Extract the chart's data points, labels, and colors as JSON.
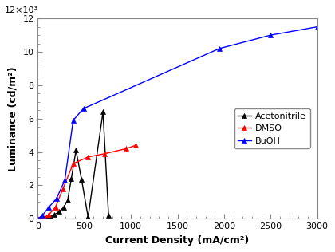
{
  "title": "",
  "xlabel": "Current Density (mA/cm²)",
  "ylabel": "Luminance (cd/m²)",
  "xlim": [
    0,
    3000
  ],
  "ylim": [
    0,
    12000
  ],
  "ytick_values": [
    0,
    2000,
    4000,
    6000,
    8000,
    10000,
    12000
  ],
  "ytick_labels": [
    "0",
    "2",
    "4",
    "6",
    "8",
    "10",
    "12"
  ],
  "xtick_values": [
    0,
    500,
    1000,
    1500,
    2000,
    2500,
    3000
  ],
  "series": [
    {
      "label": "Acetonitrile",
      "color": "#000000",
      "marker": "^",
      "markersize": 5,
      "x": [
        0,
        20,
        40,
        55,
        70,
        90,
        110,
        140,
        180,
        230,
        280,
        320,
        360,
        410,
        470,
        540,
        700,
        760
      ],
      "y": [
        0,
        0,
        0,
        5,
        10,
        25,
        55,
        120,
        250,
        430,
        700,
        1100,
        2400,
        4100,
        2350,
        100,
        6400,
        200
      ]
    },
    {
      "label": "DMSO",
      "color": "#ff0000",
      "marker": "^",
      "markersize": 5,
      "x": [
        0,
        30,
        70,
        120,
        190,
        270,
        380,
        540,
        720,
        950,
        1050
      ],
      "y": [
        0,
        20,
        80,
        250,
        700,
        1800,
        3300,
        3700,
        3900,
        4200,
        4400
      ]
    },
    {
      "label": "BuOH",
      "color": "#0000ff",
      "marker": "^",
      "markersize": 5,
      "x": [
        0,
        50,
        120,
        200,
        290,
        380,
        490,
        1950,
        2500,
        3000
      ],
      "y": [
        0,
        200,
        700,
        1200,
        2300,
        5900,
        6600,
        10200,
        11000,
        11500
      ]
    }
  ],
  "figsize": [
    4.2,
    3.16
  ],
  "dpi": 100,
  "background_color": "#ffffff",
  "spine_color": "#888888",
  "sci_notation": "12×10³"
}
